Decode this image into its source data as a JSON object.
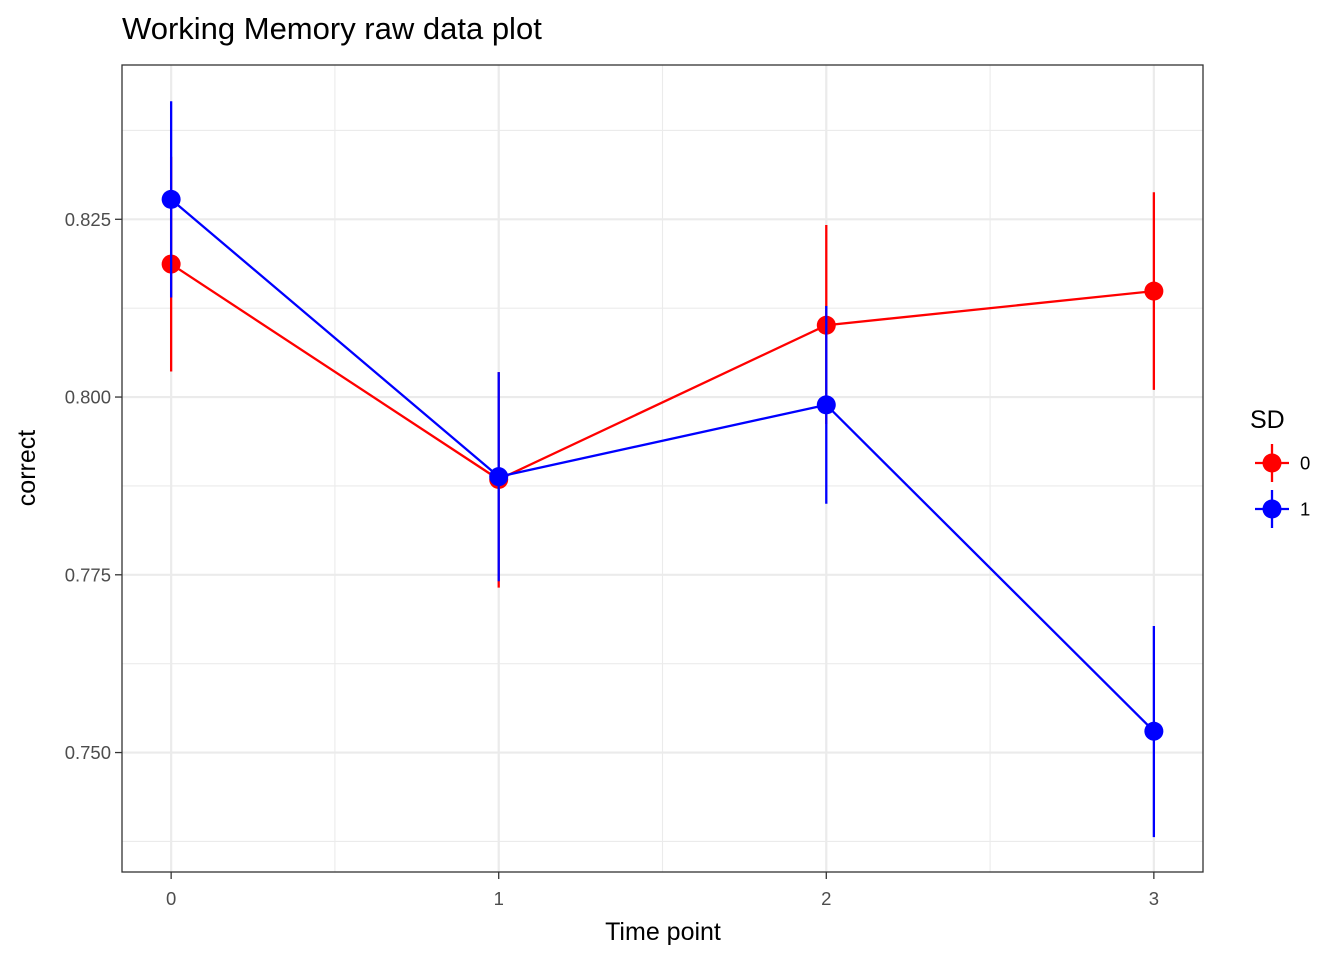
{
  "chart_data": {
    "type": "line",
    "title": "Working Memory raw data plot",
    "xlabel": "Time point",
    "ylabel": "correct",
    "x": [
      0,
      1,
      2,
      3
    ],
    "x_tick_labels": [
      "0",
      "1",
      "2",
      "3"
    ],
    "y_tick_values": [
      0.75,
      0.775,
      0.8,
      0.825
    ],
    "y_tick_labels": [
      "0.750",
      "0.775",
      "0.800",
      "0.825"
    ],
    "xlim": [
      -0.15,
      3.15
    ],
    "ylim": [
      0.7332,
      0.8467
    ],
    "grid": true,
    "error_bars": true,
    "legend": {
      "title": "SD",
      "position": "right"
    },
    "series": [
      {
        "name": "0",
        "color": "#ff0000",
        "values": [
          0.8187,
          0.7884,
          0.8101,
          0.8149
        ],
        "err_low": [
          0.8036,
          0.7732,
          0.7962,
          0.801
        ],
        "err_high": [
          0.8338,
          0.8035,
          0.8242,
          0.8288
        ]
      },
      {
        "name": "1",
        "color": "#0000ff",
        "values": [
          0.8278,
          0.7888,
          0.7989,
          0.753
        ],
        "err_low": [
          0.814,
          0.7741,
          0.785,
          0.7381
        ],
        "err_high": [
          0.8416,
          0.8035,
          0.8128,
          0.7678
        ]
      }
    ]
  }
}
